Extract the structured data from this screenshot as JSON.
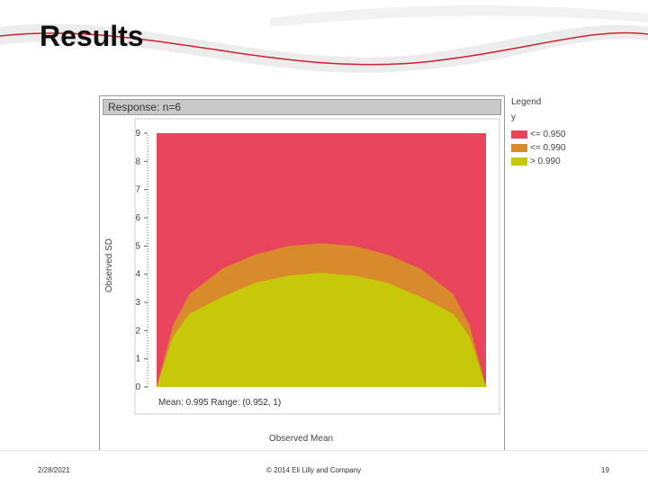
{
  "slide": {
    "title": "Results",
    "footer_date": "2/28/2021",
    "footer_copyright": "© 2014 Eli Lilly and Company",
    "page_number": "19"
  },
  "chart_data": {
    "type": "area",
    "panel_title": "Response: n=6",
    "ylabel": "Observed SD",
    "xlabel": "Observed Mean",
    "caption": "Mean: 0.995 Range: (0.952, 1)",
    "yticks": [
      "0",
      "1",
      "2",
      "3",
      "4",
      "5",
      "6",
      "7",
      "8",
      "9"
    ],
    "ylim": [
      0,
      9
    ],
    "xlim": [
      0,
      1
    ],
    "grid": false,
    "legend": {
      "title": "Legend",
      "variable": "y",
      "position": "right",
      "items": [
        {
          "label": "<= 0.950",
          "color": "#e8455c"
        },
        {
          "label": "<= 0.990",
          "color": "#d98a2a"
        },
        {
          "label": "> 0.990",
          "color": "#c8c80a"
        }
      ]
    },
    "regions": [
      {
        "name": "<= 0.950",
        "x": [
          0,
          1
        ],
        "y_upper": [
          9,
          9
        ]
      },
      {
        "name": "<= 0.990",
        "x": [
          0,
          0.05,
          0.1,
          0.2,
          0.3,
          0.4,
          0.5,
          0.6,
          0.7,
          0.8,
          0.9,
          0.95,
          1
        ],
        "y_upper": [
          0,
          2.2,
          3.3,
          4.2,
          4.7,
          5.0,
          5.1,
          5.0,
          4.7,
          4.2,
          3.3,
          2.2,
          0
        ]
      },
      {
        "name": "> 0.990",
        "x": [
          0,
          0.05,
          0.1,
          0.2,
          0.3,
          0.4,
          0.5,
          0.6,
          0.7,
          0.8,
          0.9,
          0.95,
          1
        ],
        "y_upper": [
          0,
          1.8,
          2.6,
          3.2,
          3.7,
          3.95,
          4.05,
          3.95,
          3.7,
          3.2,
          2.6,
          1.8,
          0
        ]
      }
    ]
  }
}
